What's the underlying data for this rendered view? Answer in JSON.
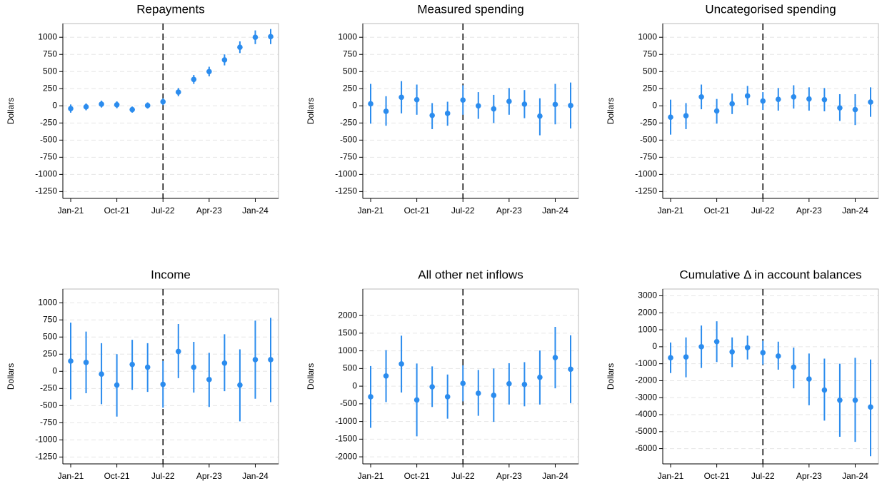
{
  "chart_data": [
    {
      "type": "errorbar",
      "title": "Repayments",
      "ylabel": "Dollars",
      "categories": [
        "Jan-21",
        null,
        null,
        "Oct-21",
        null,
        null,
        "Jul-22",
        null,
        null,
        "Apr-23",
        null,
        null,
        "Jan-24",
        null
      ],
      "values": [
        -40,
        -15,
        25,
        15,
        -55,
        5,
        60,
        200,
        385,
        500,
        670,
        855,
        1000,
        1010
      ],
      "lower": [
        -100,
        -65,
        -25,
        -35,
        -100,
        -40,
        10,
        140,
        320,
        430,
        590,
        770,
        900,
        900
      ],
      "upper": [
        20,
        35,
        75,
        65,
        -10,
        50,
        110,
        260,
        450,
        570,
        750,
        940,
        1100,
        1120
      ],
      "color": "#2b8cee",
      "event_line": "Jul-22",
      "grid": true,
      "ylim": [
        -1350,
        1200
      ],
      "yticks": [
        -1250,
        -1000,
        -750,
        -500,
        -250,
        0,
        250,
        500,
        750,
        1000
      ]
    },
    {
      "type": "errorbar",
      "title": "Measured spending",
      "ylabel": "Dollars",
      "categories": [
        "Jan-21",
        null,
        null,
        "Oct-21",
        null,
        null,
        "Jul-22",
        null,
        null,
        "Apr-23",
        null,
        null,
        "Jan-24",
        null
      ],
      "values": [
        30,
        -80,
        125,
        90,
        -140,
        -110,
        85,
        0,
        -45,
        65,
        25,
        -150,
        20,
        5
      ],
      "lower": [
        -260,
        -290,
        -110,
        -130,
        -340,
        -290,
        -130,
        -190,
        -250,
        -130,
        -180,
        -430,
        -270,
        -330
      ],
      "upper": [
        320,
        140,
        360,
        310,
        40,
        60,
        300,
        200,
        160,
        260,
        230,
        110,
        320,
        340
      ],
      "color": "#2b8cee",
      "event_line": "Jul-22",
      "grid": true,
      "ylim": [
        -1350,
        1200
      ],
      "yticks": [
        -1250,
        -1000,
        -750,
        -500,
        -250,
        0,
        250,
        500,
        750,
        1000
      ]
    },
    {
      "type": "errorbar",
      "title": "Uncategorised spending",
      "ylabel": "Dollars",
      "categories": [
        "Jan-21",
        null,
        null,
        "Oct-21",
        null,
        null,
        "Jul-22",
        null,
        null,
        "Apr-23",
        null,
        null,
        "Jan-24",
        null
      ],
      "values": [
        -165,
        -145,
        130,
        -75,
        30,
        145,
        70,
        95,
        130,
        100,
        90,
        -30,
        -55,
        55
      ],
      "lower": [
        -420,
        -340,
        -50,
        -260,
        -120,
        10,
        -60,
        -70,
        -40,
        -70,
        -80,
        -220,
        -280,
        -160
      ],
      "upper": [
        90,
        40,
        310,
        100,
        180,
        290,
        200,
        260,
        300,
        270,
        260,
        170,
        170,
        270
      ],
      "color": "#2b8cee",
      "event_line": "Jul-22",
      "grid": true,
      "ylim": [
        -1350,
        1200
      ],
      "yticks": [
        -1250,
        -1000,
        -750,
        -500,
        -250,
        0,
        250,
        500,
        750,
        1000
      ]
    },
    {
      "type": "errorbar",
      "title": "Income",
      "ylabel": "Dollars",
      "categories": [
        "Jan-21",
        null,
        null,
        "Oct-21",
        null,
        null,
        "Jul-22",
        null,
        null,
        "Apr-23",
        null,
        null,
        "Jan-24",
        null
      ],
      "values": [
        150,
        130,
        -40,
        -200,
        100,
        60,
        -190,
        290,
        60,
        -120,
        120,
        -200,
        170,
        170
      ],
      "lower": [
        -410,
        -320,
        -480,
        -660,
        -270,
        -300,
        -530,
        -100,
        -310,
        -520,
        -290,
        -730,
        -400,
        -450
      ],
      "upper": [
        710,
        580,
        410,
        250,
        460,
        410,
        150,
        690,
        430,
        270,
        540,
        320,
        740,
        780
      ],
      "color": "#2b8cee",
      "event_line": "Jul-22",
      "grid": true,
      "ylim": [
        -1350,
        1200
      ],
      "yticks": [
        -1250,
        -1000,
        -750,
        -500,
        -250,
        0,
        250,
        500,
        750,
        1000
      ]
    },
    {
      "type": "errorbar",
      "title": "All other net inflows",
      "ylabel": "Dollars",
      "categories": [
        "Jan-21",
        null,
        null,
        "Oct-21",
        null,
        null,
        "Jul-22",
        null,
        null,
        "Apr-23",
        null,
        null,
        "Jan-24",
        null
      ],
      "values": [
        -300,
        290,
        630,
        -390,
        -20,
        -300,
        80,
        -200,
        -260,
        70,
        50,
        250,
        810,
        480
      ],
      "lower": [
        -1180,
        -450,
        -180,
        -1420,
        -590,
        -920,
        -430,
        -840,
        -1010,
        -520,
        -570,
        -520,
        -60,
        -480
      ],
      "upper": [
        570,
        1020,
        1430,
        640,
        560,
        330,
        590,
        460,
        500,
        650,
        680,
        1010,
        1680,
        1440
      ],
      "color": "#2b8cee",
      "event_line": "Jul-22",
      "grid": true,
      "ylim": [
        -2200,
        2750
      ],
      "yticks": [
        -2000,
        -1500,
        -1000,
        -500,
        0,
        500,
        1000,
        1500,
        2000
      ]
    },
    {
      "type": "errorbar",
      "title": "Cumulative Δ in account balances",
      "ylabel": "Dollars",
      "categories": [
        "Jan-21",
        null,
        null,
        "Oct-21",
        null,
        null,
        "Jul-22",
        null,
        null,
        "Apr-23",
        null,
        null,
        "Jan-24",
        null
      ],
      "values": [
        -650,
        -600,
        0,
        300,
        -300,
        -50,
        -350,
        -550,
        -1200,
        -1900,
        -2550,
        -3150,
        -3150,
        -3550
      ],
      "lower": [
        -1550,
        -1800,
        -1250,
        -900,
        -1200,
        -750,
        -1050,
        -1350,
        -2450,
        -3450,
        -4350,
        -5300,
        -5600,
        -6450
      ],
      "upper": [
        250,
        550,
        1250,
        1500,
        550,
        650,
        350,
        300,
        -50,
        -400,
        -700,
        -1000,
        -650,
        -750
      ],
      "color": "#2b8cee",
      "event_line": "Jul-22",
      "grid": true,
      "ylim": [
        -6900,
        3400
      ],
      "yticks": [
        -6000,
        -5000,
        -4000,
        -3000,
        -2000,
        -1000,
        0,
        1000,
        2000,
        3000
      ]
    }
  ]
}
